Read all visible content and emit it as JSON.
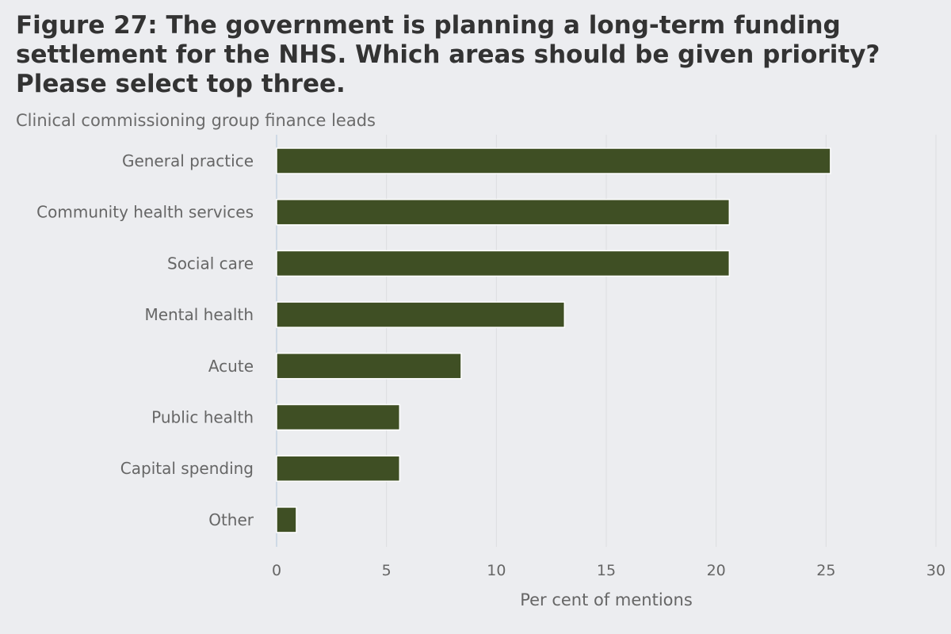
{
  "header": {
    "title": "Figure 27: The government is planning a long-term funding settlement for the NHS. Which areas should be given priority? Please select top three.",
    "subtitle": "Clinical commissioning group finance leads"
  },
  "colors": {
    "bar": "#3f4f24",
    "bar_stroke": "#ffffff",
    "grid": "#dcdde0",
    "axis": "#c5d3e2",
    "text": "#666666"
  },
  "chart_data": {
    "type": "bar",
    "orientation": "horizontal",
    "title": "Figure 27: The government is planning a long-term funding settlement for the NHS. Which areas should be given priority? Please select top three.",
    "subtitle": "Clinical commissioning group finance leads",
    "categories": [
      "General practice",
      "Community health services",
      "Social care",
      "Mental health",
      "Acute",
      "Public health",
      "Capital spending",
      "Other"
    ],
    "values": [
      25.2,
      20.6,
      20.6,
      13.1,
      8.4,
      5.6,
      5.6,
      0.9
    ],
    "xlabel": "Per cent of mentions",
    "ylabel": "",
    "xlim": [
      0,
      30
    ],
    "xticks": [
      0,
      5,
      10,
      15,
      20,
      25,
      30
    ],
    "grid": true
  }
}
